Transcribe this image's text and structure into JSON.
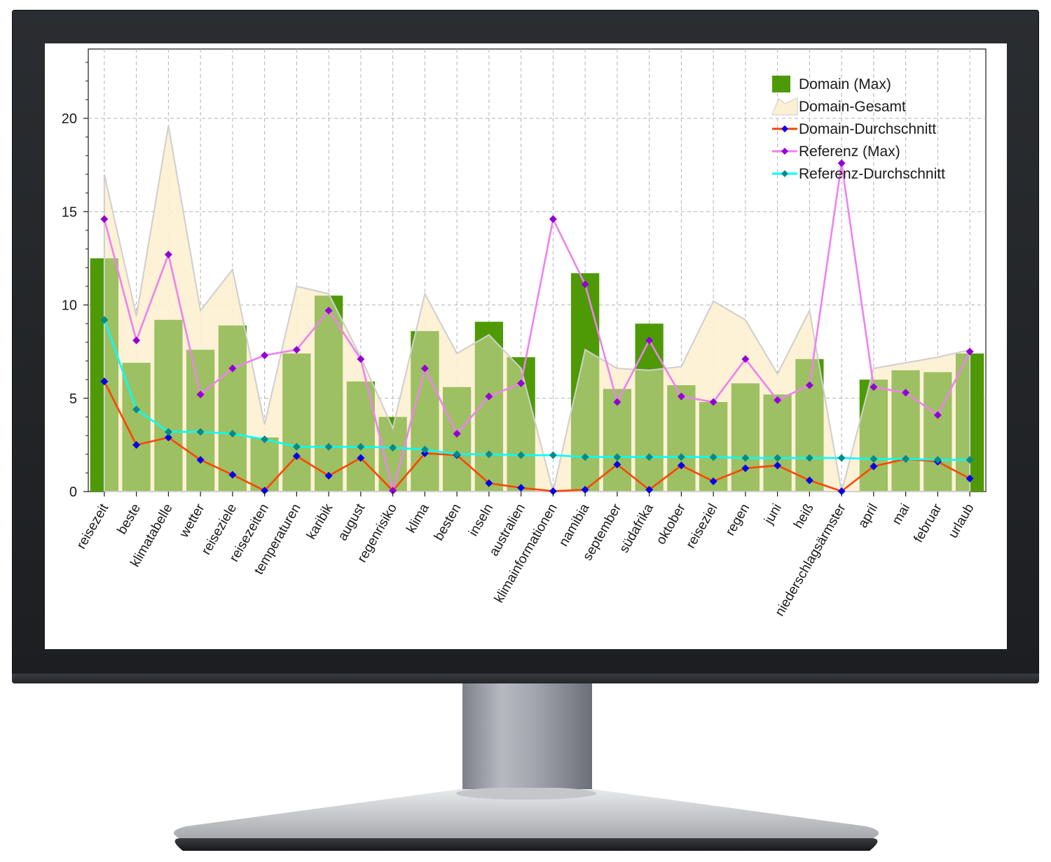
{
  "chart_data": {
    "type": "bar",
    "categories": [
      "reisezeit",
      "beste",
      "klimatabelle",
      "wetter",
      "reiseziele",
      "reisezeiten",
      "temperaturen",
      "karibik",
      "august",
      "regenrisiko",
      "klima",
      "besten",
      "inseln",
      "australien",
      "klimainformationen",
      "namibia",
      "september",
      "südafrika",
      "oktober",
      "reiseziel",
      "regen",
      "juni",
      "heiß",
      "niederschlagsärmster",
      "april",
      "mai",
      "februar",
      "urlaub"
    ],
    "yticks": [
      0,
      5,
      10,
      15,
      20
    ],
    "ylim": [
      0,
      23.5
    ],
    "grid": true,
    "legend_position": "top-right",
    "series": [
      {
        "name": "Domain (Max)",
        "type": "bar",
        "color": "#4e9a06",
        "values": [
          12.5,
          6.9,
          9.2,
          7.6,
          8.9,
          2.9,
          7.4,
          10.5,
          5.9,
          4.0,
          8.6,
          5.6,
          9.1,
          7.2,
          0,
          11.7,
          5.5,
          9.0,
          5.7,
          4.8,
          5.8,
          5.2,
          7.1,
          0,
          6.0,
          6.5,
          6.4,
          7.4
        ]
      },
      {
        "name": "Domain-Gesamt",
        "type": "area",
        "color": "#fdf0d2",
        "values": [
          17.0,
          9.4,
          19.6,
          9.7,
          11.9,
          3.6,
          11.0,
          10.6,
          7.2,
          3.4,
          10.6,
          7.4,
          8.4,
          6.6,
          0,
          7.6,
          6.6,
          6.5,
          6.7,
          10.2,
          9.2,
          6.3,
          9.7,
          0,
          6.6,
          6.9,
          7.2,
          7.6
        ]
      },
      {
        "name": "Domain-Durchschnitt",
        "type": "line",
        "color": "#ff4500",
        "marker_color": "#0000ee",
        "values": [
          5.9,
          2.5,
          2.9,
          1.7,
          0.9,
          0.05,
          1.9,
          0.85,
          1.8,
          0.05,
          2.05,
          1.95,
          0.45,
          0.2,
          0.02,
          0.1,
          1.45,
          0.1,
          1.4,
          0.55,
          1.25,
          1.4,
          0.6,
          0.02,
          1.35,
          1.75,
          1.6,
          0.7
        ]
      },
      {
        "name": "Referenz (Max)",
        "type": "line",
        "color": "#ee82ee",
        "marker_color": "#9400d3",
        "values": [
          14.6,
          8.1,
          12.7,
          5.2,
          6.6,
          7.3,
          7.6,
          9.7,
          7.1,
          0.05,
          6.6,
          3.1,
          5.1,
          5.8,
          14.6,
          11.1,
          4.8,
          8.1,
          5.1,
          4.8,
          7.1,
          4.9,
          5.7,
          17.6,
          5.6,
          5.3,
          4.1,
          7.5
        ]
      },
      {
        "name": "Referenz-Durchschnitt",
        "type": "line",
        "color": "#00ffff",
        "marker_color": "#008b8b",
        "values": [
          9.2,
          4.4,
          3.2,
          3.2,
          3.1,
          2.8,
          2.4,
          2.4,
          2.4,
          2.35,
          2.25,
          2.0,
          2.0,
          1.95,
          1.95,
          1.85,
          1.85,
          1.85,
          1.85,
          1.85,
          1.8,
          1.8,
          1.8,
          1.8,
          1.75,
          1.75,
          1.7,
          1.7
        ]
      }
    ]
  }
}
